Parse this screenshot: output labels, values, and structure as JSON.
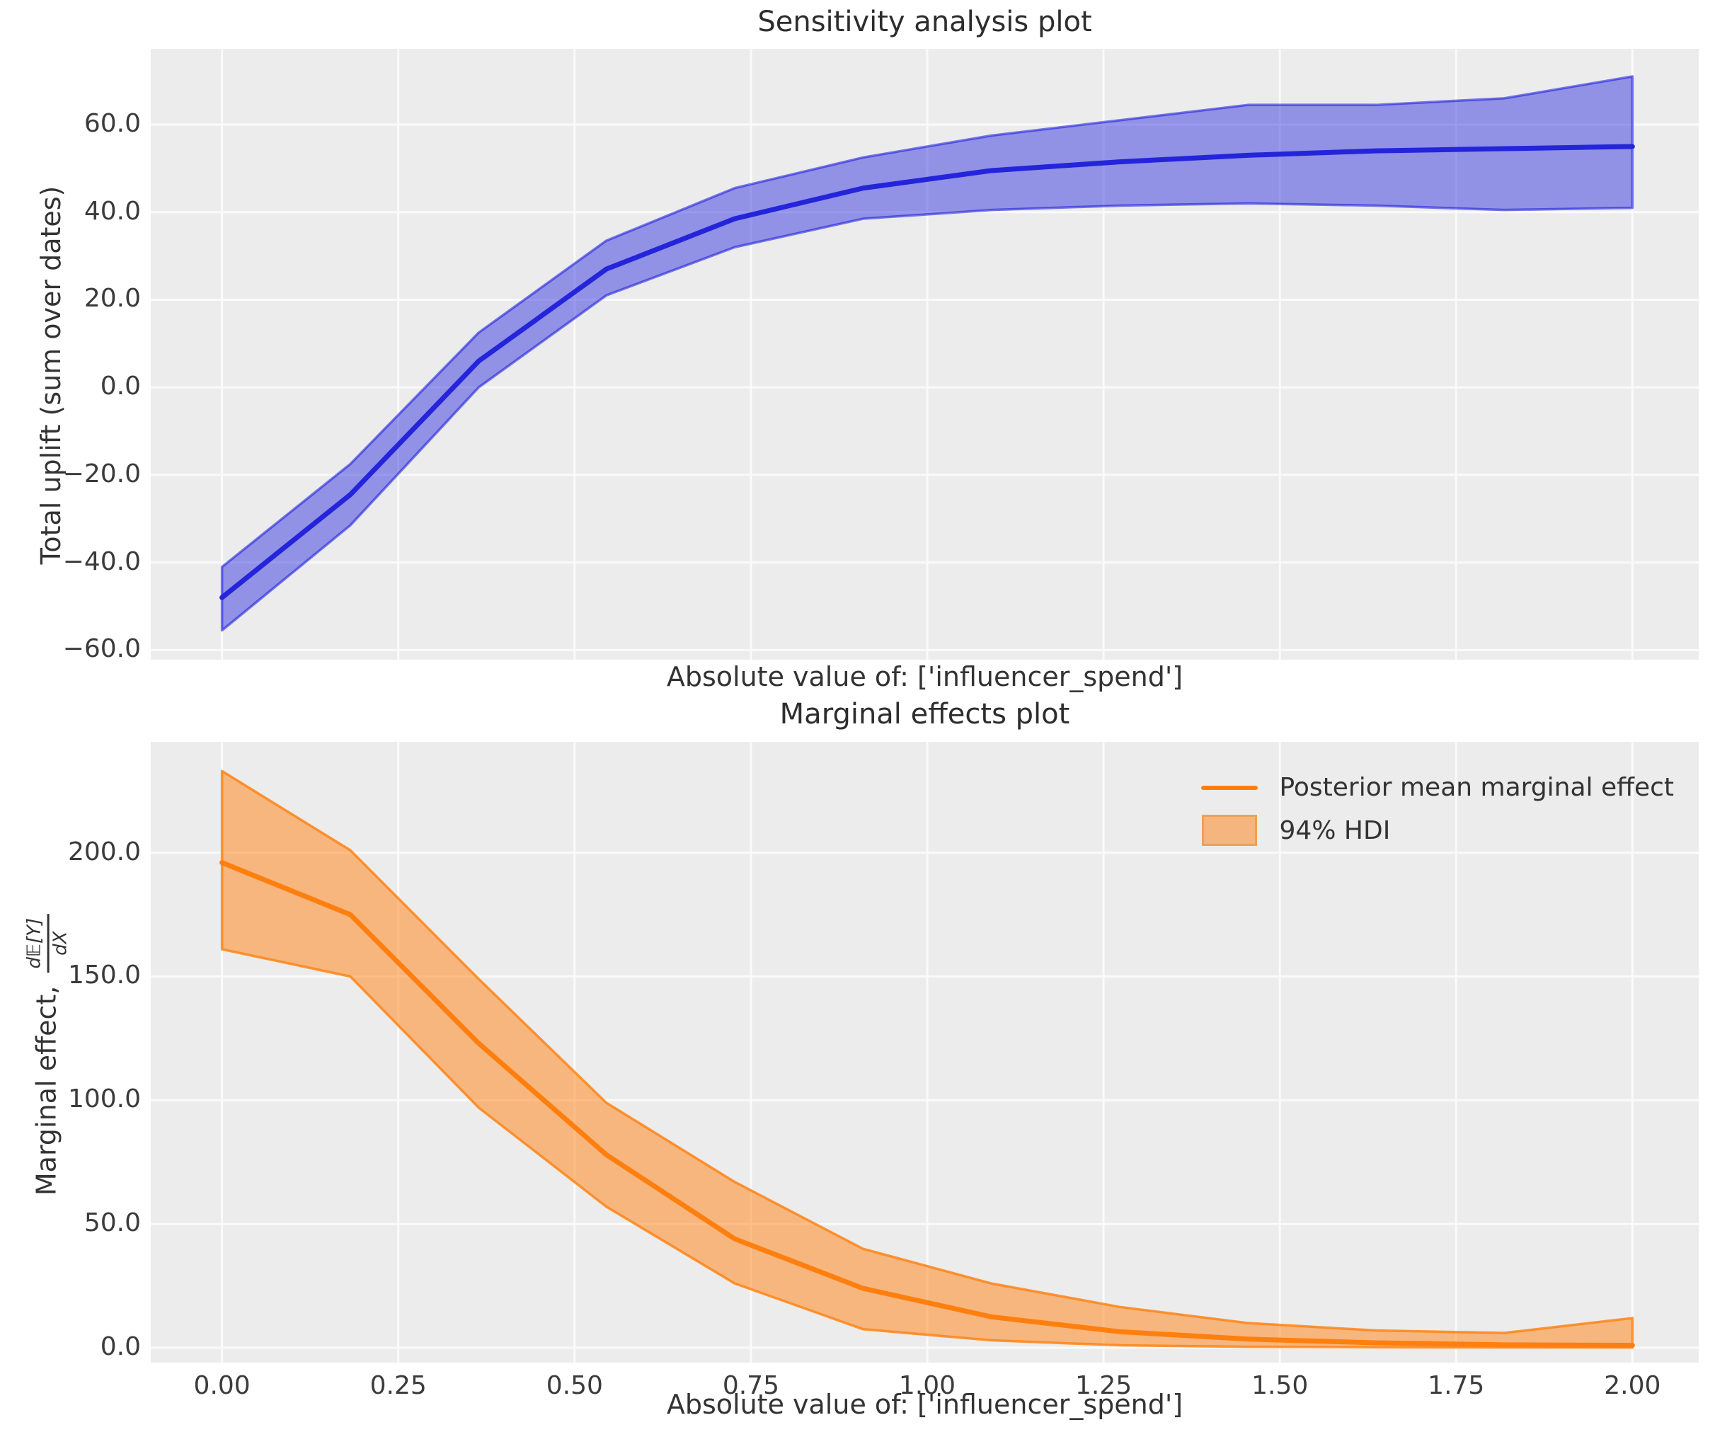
{
  "figure": {
    "background": "#ffffff",
    "panel_background": "#ececec",
    "grid_color": "#fafafa",
    "text_color": "#333333",
    "tick_color": "#3b3b3b"
  },
  "chart_data": [
    {
      "type": "line",
      "title": "Sensitivity analysis plot",
      "xlabel": "Absolute value of: ['influencer_spend']",
      "ylabel": "Total uplift (sum over dates)",
      "x": [
        0.0,
        0.182,
        0.364,
        0.545,
        0.727,
        0.909,
        1.091,
        1.273,
        1.455,
        1.636,
        1.818,
        2.0
      ],
      "series": [
        {
          "name": "posterior_mean_total_uplift",
          "values": [
            -48,
            -24.5,
            6,
            27,
            38.5,
            45.5,
            49.5,
            51.5,
            53,
            54,
            54.5,
            55
          ]
        },
        {
          "name": "hdi_94_lower",
          "values": [
            -55.5,
            -31.5,
            0,
            21,
            32,
            38.5,
            40.5,
            41.5,
            42,
            41.5,
            40.5,
            41
          ]
        },
        {
          "name": "hdi_94_upper",
          "values": [
            -41,
            -17.5,
            12.5,
            33.5,
            45.5,
            52.5,
            57.5,
            61,
            64.5,
            64.5,
            66,
            71
          ]
        }
      ],
      "xlim": [
        -0.101,
        2.094
      ],
      "ylim": [
        -62.2,
        77.3
      ],
      "grid": true,
      "xticks": {
        "values": [
          0.0,
          0.25,
          0.5,
          0.75,
          1.0,
          1.25,
          1.5,
          1.75,
          2.0
        ],
        "labels": [
          "0.00",
          "0.25",
          "0.50",
          "0.75",
          "1.00",
          "1.25",
          "1.50",
          "1.75",
          "2.00"
        ],
        "show_labels": false
      },
      "yticks": {
        "values": [
          60,
          40,
          20,
          0,
          -20,
          -40,
          -60
        ],
        "labels": [
          "60.0",
          "40.0",
          "20.0",
          "0.0",
          "−20.0",
          "−40.0",
          "−60.0"
        ]
      },
      "colors": {
        "line": "#2424da",
        "fill": "rgba(20,20,222,0.42)",
        "edge": "rgba(20,20,222,0.55)",
        "grid": "#fafafa"
      }
    },
    {
      "type": "line",
      "title": "Marginal effects plot",
      "xlabel": "Absolute value of: ['influencer_spend']",
      "ylabel_prefix": "Marginal effect, ",
      "ylabel_frac_num": "d𝔼[Y]",
      "ylabel_frac_den": "dX",
      "x": [
        0.0,
        0.182,
        0.364,
        0.545,
        0.727,
        0.909,
        1.091,
        1.273,
        1.455,
        1.636,
        1.818,
        2.0
      ],
      "series": [
        {
          "name": "posterior_mean_marginal_effect",
          "values": [
            196,
            175,
            123,
            78,
            44,
            24,
            12.5,
            6.5,
            3.5,
            2,
            1.2,
            1
          ]
        },
        {
          "name": "hdi_94_lower",
          "values": [
            161,
            150,
            97,
            57,
            26,
            7.5,
            3,
            1,
            0.4,
            0.2,
            0.1,
            0.1
          ]
        },
        {
          "name": "hdi_94_upper",
          "values": [
            233,
            201,
            149,
            99,
            67,
            40,
            26,
            16.5,
            10,
            7,
            6,
            12
          ]
        }
      ],
      "xlim": [
        -0.101,
        2.094
      ],
      "ylim": [
        -6.0,
        244.8
      ],
      "grid": true,
      "xticks": {
        "values": [
          0.0,
          0.25,
          0.5,
          0.75,
          1.0,
          1.25,
          1.5,
          1.75,
          2.0
        ],
        "labels": [
          "0.00",
          "0.25",
          "0.50",
          "0.75",
          "1.00",
          "1.25",
          "1.50",
          "1.75",
          "2.00"
        ],
        "show_labels": true
      },
      "yticks": {
        "values": [
          200,
          150,
          100,
          50,
          0
        ],
        "labels": [
          "200.0",
          "150.0",
          "100.0",
          "50.0",
          "0.0"
        ]
      },
      "colors": {
        "line": "#ff7f0e",
        "fill": "rgba(255,127,14,0.5)",
        "edge": "rgba(255,127,14,0.8)",
        "grid": "#fafafa"
      },
      "legend": {
        "position": "upper right",
        "items": [
          {
            "type": "line",
            "label": "Posterior mean marginal effect"
          },
          {
            "type": "patch",
            "label": "94% HDI"
          }
        ]
      },
      "legend_patch_fill": "#f5b57e",
      "legend_patch_border": "#f0a050",
      "legend_line_color": "#ff7f0e"
    }
  ]
}
